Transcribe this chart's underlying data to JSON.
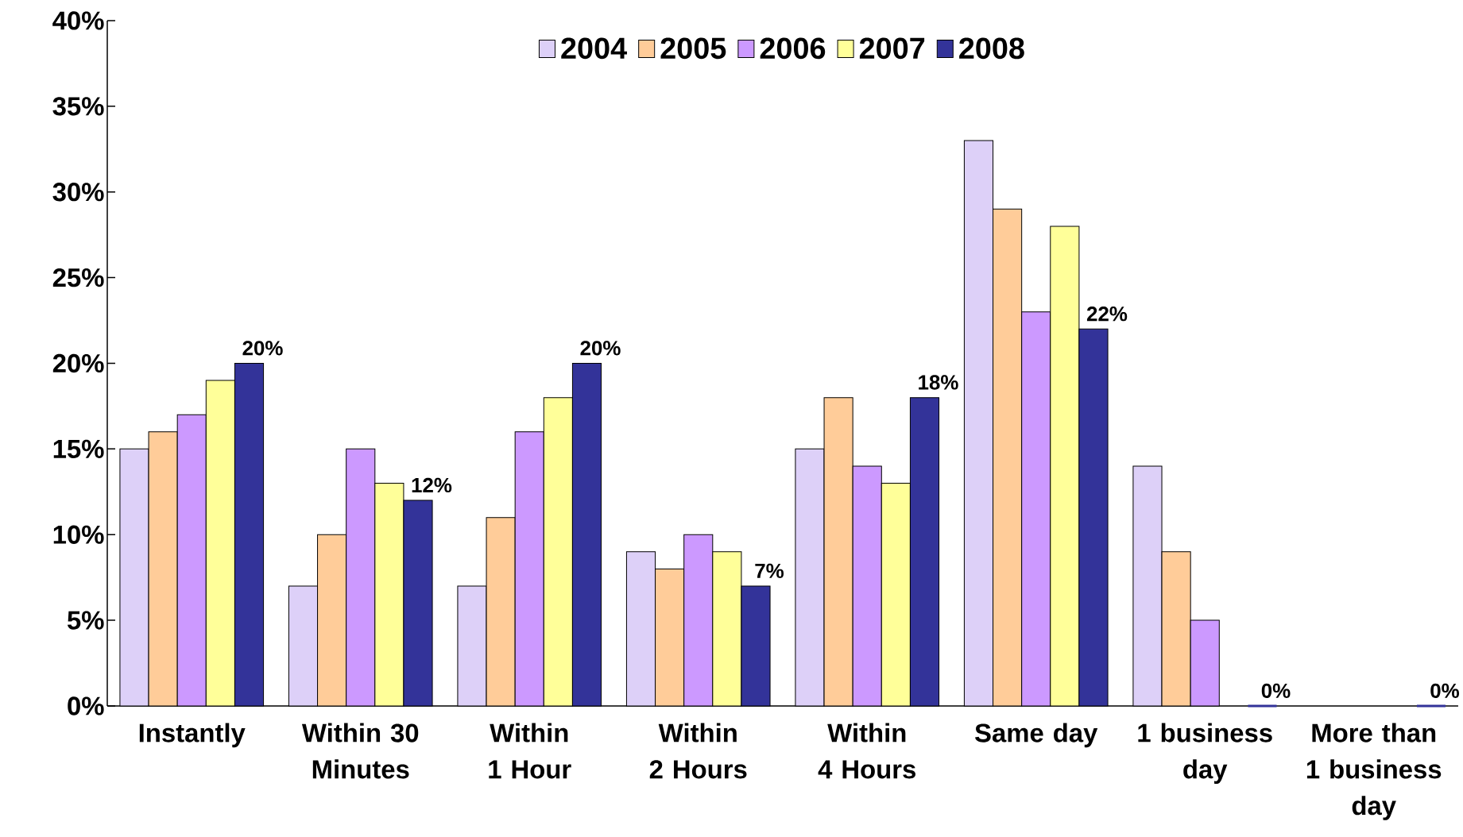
{
  "chart_data": {
    "type": "bar",
    "categories": [
      "Instantly",
      "Within 30 Minutes",
      "Within 1 Hour",
      "Within 2 Hours",
      "Within 4 Hours",
      "Same day",
      "1 business day",
      "More than 1 business day"
    ],
    "series": [
      {
        "name": "2004",
        "color": "#ddd0f8",
        "values": [
          15,
          7,
          7,
          9,
          15,
          33,
          14,
          null
        ]
      },
      {
        "name": "2005",
        "color": "#ffcc99",
        "values": [
          16,
          10,
          11,
          8,
          18,
          29,
          9,
          null
        ]
      },
      {
        "name": "2006",
        "color": "#cc99ff",
        "values": [
          17,
          15,
          16,
          10,
          14,
          23,
          5,
          null
        ]
      },
      {
        "name": "2007",
        "color": "#ffff99",
        "values": [
          19,
          13,
          18,
          9,
          13,
          28,
          null,
          null
        ]
      },
      {
        "name": "2008",
        "color": "#333399",
        "values": [
          20,
          12,
          20,
          7,
          18,
          22,
          0,
          0
        ],
        "value_labels": [
          "20%",
          "12%",
          "20%",
          "7%",
          "18%",
          "22%",
          "0%",
          "0%"
        ]
      }
    ],
    "ylim": [
      0,
      40
    ],
    "yticks": [
      {
        "value": 0,
        "label": "0%"
      },
      {
        "value": 5,
        "label": "5%"
      },
      {
        "value": 10,
        "label": "10%"
      },
      {
        "value": 15,
        "label": "15%"
      },
      {
        "value": 20,
        "label": "20%"
      },
      {
        "value": 25,
        "label": "25%"
      },
      {
        "value": 30,
        "label": "30%"
      },
      {
        "value": 35,
        "label": "35%"
      },
      {
        "value": 40,
        "label": "40%"
      }
    ],
    "legend": "top"
  }
}
